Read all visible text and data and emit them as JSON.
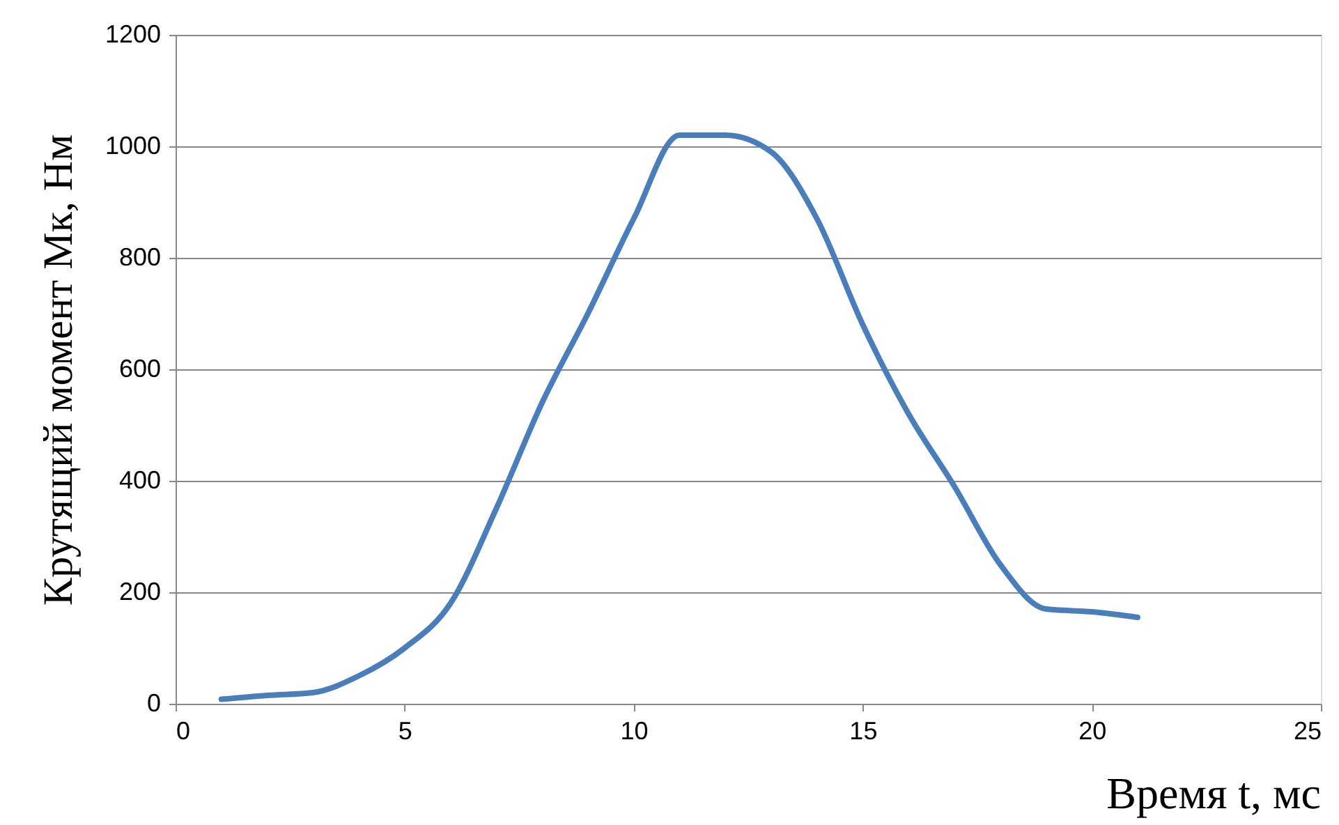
{
  "chart_data": {
    "type": "line",
    "xlabel": "Время t, мс",
    "ylabel": "Крутящий момент Mк, Нм",
    "x": [
      1,
      2,
      3,
      4,
      5,
      6,
      7,
      8,
      9,
      10,
      11,
      12,
      13,
      14,
      15,
      16,
      17,
      18,
      19,
      20,
      21
    ],
    "series": [
      {
        "color": "#4a7ebb",
        "values": [
          8,
          15,
          20,
          50,
          100,
          180,
          350,
          540,
          700,
          870,
          1020,
          1020,
          990,
          870,
          680,
          520,
          390,
          250,
          170,
          165,
          155
        ]
      }
    ],
    "xlim": [
      0,
      25
    ],
    "xticks": [
      0,
      5,
      10,
      15,
      20,
      25
    ],
    "ylim": [
      0,
      1200
    ],
    "yticks": [
      0,
      200,
      400,
      600,
      800,
      1000,
      1200
    ],
    "grid": "y",
    "marker": "none",
    "line_style": "solid"
  }
}
